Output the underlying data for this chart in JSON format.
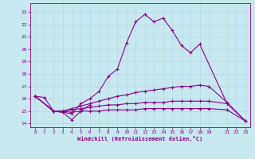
{
  "background_color": "#c8e8f0",
  "grid_color": "#b0d8e8",
  "line_color": "#880088",
  "xlabel": "Windchill (Refroidissement éolien,°C)",
  "xticks": [
    0,
    1,
    2,
    3,
    4,
    5,
    6,
    7,
    8,
    9,
    10,
    11,
    12,
    13,
    14,
    15,
    16,
    17,
    18,
    19,
    21,
    22,
    23
  ],
  "yticks": [
    14,
    15,
    16,
    17,
    18,
    19,
    20,
    21,
    22,
    23
  ],
  "xlim": [
    -0.5,
    23.5
  ],
  "ylim": [
    13.7,
    23.7
  ],
  "series": [
    {
      "points": [
        [
          0,
          16.2
        ],
        [
          1,
          16.1
        ],
        [
          2,
          15.0
        ],
        [
          3,
          14.9
        ],
        [
          4,
          14.8
        ],
        [
          5,
          15.6
        ],
        [
          6,
          16.0
        ],
        [
          7,
          16.6
        ],
        [
          8,
          17.8
        ],
        [
          9,
          18.4
        ],
        [
          10,
          20.5
        ],
        [
          11,
          22.2
        ],
        [
          12,
          22.8
        ],
        [
          13,
          22.2
        ],
        [
          14,
          22.5
        ],
        [
          15,
          21.5
        ],
        [
          16,
          20.3
        ],
        [
          17,
          19.7
        ],
        [
          18,
          20.4
        ],
        [
          21,
          15.6
        ]
      ]
    },
    {
      "points": [
        [
          0,
          16.2
        ],
        [
          2,
          15.0
        ],
        [
          3,
          14.9
        ],
        [
          4,
          14.3
        ],
        [
          5,
          15.0
        ],
        [
          6,
          15.5
        ]
      ]
    },
    {
      "points": [
        [
          0,
          16.2
        ],
        [
          2,
          15.0
        ],
        [
          3,
          15.0
        ],
        [
          4,
          15.2
        ],
        [
          5,
          15.4
        ],
        [
          6,
          15.6
        ],
        [
          7,
          15.8
        ],
        [
          8,
          16.0
        ],
        [
          9,
          16.2
        ],
        [
          10,
          16.3
        ],
        [
          11,
          16.5
        ],
        [
          12,
          16.6
        ],
        [
          13,
          16.7
        ],
        [
          14,
          16.8
        ],
        [
          15,
          16.9
        ],
        [
          16,
          17.0
        ],
        [
          17,
          17.0
        ],
        [
          18,
          17.1
        ],
        [
          19,
          17.0
        ],
        [
          21,
          15.7
        ],
        [
          23,
          14.2
        ]
      ]
    },
    {
      "points": [
        [
          0,
          16.2
        ],
        [
          2,
          15.0
        ],
        [
          3,
          15.0
        ],
        [
          4,
          15.1
        ],
        [
          5,
          15.2
        ],
        [
          6,
          15.3
        ],
        [
          7,
          15.4
        ],
        [
          8,
          15.5
        ],
        [
          9,
          15.5
        ],
        [
          10,
          15.6
        ],
        [
          11,
          15.6
        ],
        [
          12,
          15.7
        ],
        [
          13,
          15.7
        ],
        [
          14,
          15.7
        ],
        [
          15,
          15.8
        ],
        [
          16,
          15.8
        ],
        [
          17,
          15.8
        ],
        [
          18,
          15.8
        ],
        [
          19,
          15.8
        ],
        [
          21,
          15.6
        ],
        [
          23,
          14.2
        ]
      ]
    },
    {
      "points": [
        [
          0,
          16.2
        ],
        [
          2,
          15.0
        ],
        [
          3,
          15.0
        ],
        [
          4,
          14.9
        ],
        [
          5,
          15.0
        ],
        [
          6,
          15.0
        ],
        [
          7,
          15.0
        ],
        [
          8,
          15.1
        ],
        [
          9,
          15.1
        ],
        [
          10,
          15.1
        ],
        [
          11,
          15.1
        ],
        [
          12,
          15.2
        ],
        [
          13,
          15.2
        ],
        [
          14,
          15.2
        ],
        [
          15,
          15.2
        ],
        [
          16,
          15.2
        ],
        [
          17,
          15.2
        ],
        [
          18,
          15.2
        ],
        [
          19,
          15.2
        ],
        [
          21,
          15.1
        ],
        [
          23,
          14.2
        ]
      ]
    }
  ]
}
